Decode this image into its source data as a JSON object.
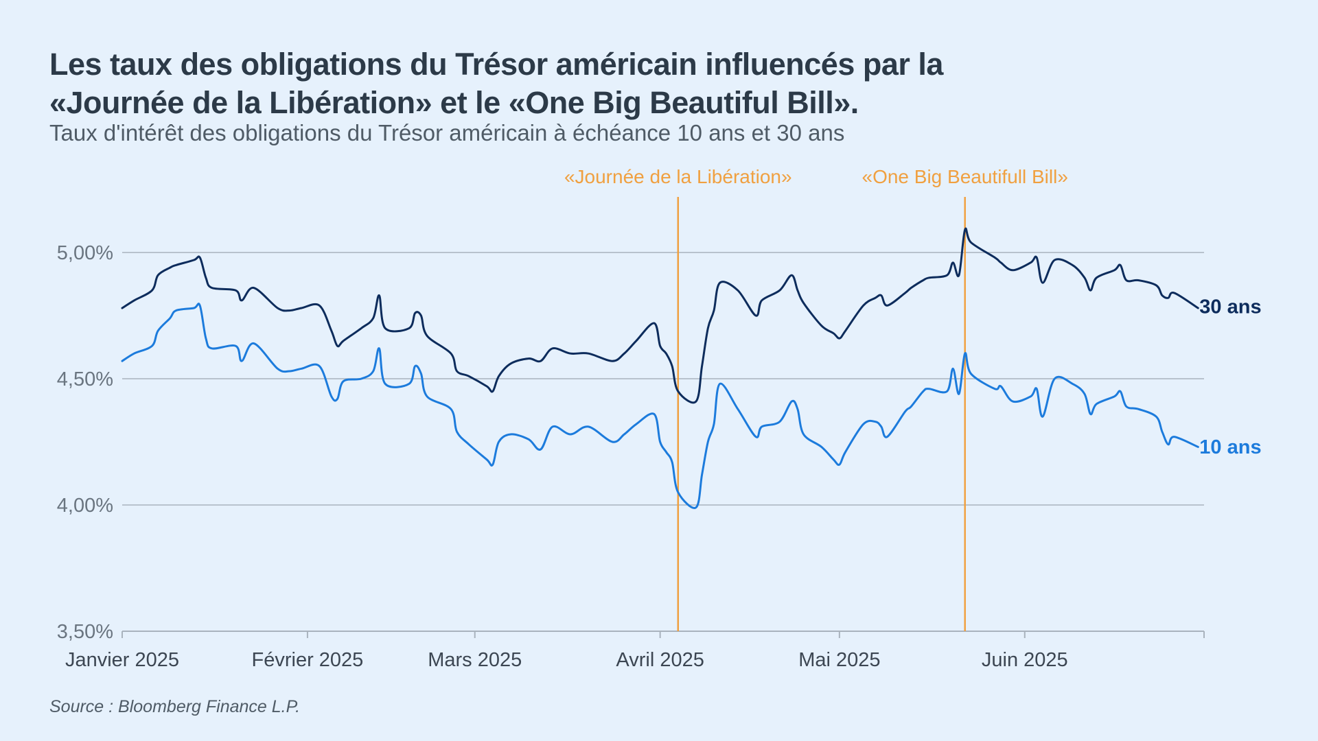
{
  "header": {
    "title_line1": "Les taux des obligations du Trésor américain influencés par la",
    "title_line2": "«Journée de la Libération» et le «One Big Beautiful Bill».",
    "subtitle": "Taux d'intérêt des obligations du Trésor américain à échéance 10 ans et 30 ans"
  },
  "footer": {
    "source": "Source : Bloomberg Finance L.P."
  },
  "colors": {
    "background": "#e6f1fc",
    "series_30": "#0d2c5c",
    "series_10": "#1c7bdc",
    "event": "#f0a040",
    "grid": "#a9b3bd"
  },
  "chart_data": {
    "type": "line",
    "ylim": [
      3.5,
      5.0
    ],
    "yticks": [
      {
        "value": 3.5,
        "label": "3,50%"
      },
      {
        "value": 4.0,
        "label": "4,00%"
      },
      {
        "value": 4.5,
        "label": "4,50%"
      },
      {
        "value": 5.0,
        "label": "5,00%"
      }
    ],
    "xlim": [
      "2025-01-01",
      "2025-07-01"
    ],
    "xticks": [
      {
        "date": "2025-01-01",
        "label": "Janvier 2025"
      },
      {
        "date": "2025-02-01",
        "label": "Février 2025"
      },
      {
        "date": "2025-03-01",
        "label": "Mars 2025"
      },
      {
        "date": "2025-04-01",
        "label": "Avril 2025"
      },
      {
        "date": "2025-05-01",
        "label": "Mai 2025"
      },
      {
        "date": "2025-06-01",
        "label": "Juin 2025"
      }
    ],
    "grid": true,
    "events": [
      {
        "date": "2025-04-04",
        "label": "«Journée de la Libération»"
      },
      {
        "date": "2025-05-22",
        "label": "«One Big Beautifull Bill»"
      }
    ],
    "series": [
      {
        "name": "30 ans",
        "points": [
          [
            "2025-01-01",
            4.78
          ],
          [
            "2025-01-03",
            4.81
          ],
          [
            "2025-01-06",
            4.85
          ],
          [
            "2025-01-07",
            4.91
          ],
          [
            "2025-01-09",
            4.94
          ],
          [
            "2025-01-10",
            4.95
          ],
          [
            "2025-01-13",
            4.97
          ],
          [
            "2025-01-14",
            4.98
          ],
          [
            "2025-01-15",
            4.9
          ],
          [
            "2025-01-16",
            4.86
          ],
          [
            "2025-01-20",
            4.85
          ],
          [
            "2025-01-21",
            4.81
          ],
          [
            "2025-01-23",
            4.86
          ],
          [
            "2025-01-27",
            4.78
          ],
          [
            "2025-01-29",
            4.77
          ],
          [
            "2025-01-31",
            4.78
          ],
          [
            "2025-02-03",
            4.79
          ],
          [
            "2025-02-05",
            4.69
          ],
          [
            "2025-02-06",
            4.63
          ],
          [
            "2025-02-07",
            4.65
          ],
          [
            "2025-02-10",
            4.7
          ],
          [
            "2025-02-12",
            4.74
          ],
          [
            "2025-02-13",
            4.83
          ],
          [
            "2025-02-14",
            4.7
          ],
          [
            "2025-02-18",
            4.7
          ],
          [
            "2025-02-19",
            4.76
          ],
          [
            "2025-02-20",
            4.75
          ],
          [
            "2025-02-21",
            4.67
          ],
          [
            "2025-02-25",
            4.6
          ],
          [
            "2025-02-26",
            4.53
          ],
          [
            "2025-02-28",
            4.51
          ],
          [
            "2025-03-03",
            4.47
          ],
          [
            "2025-03-04",
            4.45
          ],
          [
            "2025-03-05",
            4.51
          ],
          [
            "2025-03-07",
            4.56
          ],
          [
            "2025-03-10",
            4.58
          ],
          [
            "2025-03-12",
            4.57
          ],
          [
            "2025-03-14",
            4.62
          ],
          [
            "2025-03-17",
            4.6
          ],
          [
            "2025-03-20",
            4.6
          ],
          [
            "2025-03-24",
            4.57
          ],
          [
            "2025-03-26",
            4.6
          ],
          [
            "2025-03-28",
            4.65
          ],
          [
            "2025-03-31",
            4.72
          ],
          [
            "2025-04-01",
            4.63
          ],
          [
            "2025-04-02",
            4.6
          ],
          [
            "2025-04-03",
            4.55
          ],
          [
            "2025-04-04",
            4.45
          ],
          [
            "2025-04-07",
            4.41
          ],
          [
            "2025-04-08",
            4.55
          ],
          [
            "2025-04-09",
            4.7
          ],
          [
            "2025-04-10",
            4.77
          ],
          [
            "2025-04-11",
            4.88
          ],
          [
            "2025-04-14",
            4.85
          ],
          [
            "2025-04-17",
            4.75
          ],
          [
            "2025-04-18",
            4.81
          ],
          [
            "2025-04-21",
            4.85
          ],
          [
            "2025-04-23",
            4.91
          ],
          [
            "2025-04-24",
            4.85
          ],
          [
            "2025-04-25",
            4.8
          ],
          [
            "2025-04-28",
            4.71
          ],
          [
            "2025-04-30",
            4.68
          ],
          [
            "2025-05-01",
            4.66
          ],
          [
            "2025-05-02",
            4.69
          ],
          [
            "2025-05-05",
            4.79
          ],
          [
            "2025-05-07",
            4.82
          ],
          [
            "2025-05-08",
            4.83
          ],
          [
            "2025-05-09",
            4.79
          ],
          [
            "2025-05-12",
            4.84
          ],
          [
            "2025-05-13",
            4.86
          ],
          [
            "2025-05-15",
            4.89
          ],
          [
            "2025-05-16",
            4.9
          ],
          [
            "2025-05-19",
            4.91
          ],
          [
            "2025-05-20",
            4.96
          ],
          [
            "2025-05-21",
            4.91
          ],
          [
            "2025-05-22",
            5.09
          ],
          [
            "2025-05-23",
            5.04
          ],
          [
            "2025-05-27",
            4.98
          ],
          [
            "2025-05-28",
            4.96
          ],
          [
            "2025-05-30",
            4.93
          ],
          [
            "2025-06-02",
            4.96
          ],
          [
            "2025-06-03",
            4.98
          ],
          [
            "2025-06-04",
            4.88
          ],
          [
            "2025-06-06",
            4.97
          ],
          [
            "2025-06-09",
            4.95
          ],
          [
            "2025-06-11",
            4.9
          ],
          [
            "2025-06-12",
            4.85
          ],
          [
            "2025-06-13",
            4.9
          ],
          [
            "2025-06-16",
            4.93
          ],
          [
            "2025-06-17",
            4.95
          ],
          [
            "2025-06-18",
            4.89
          ],
          [
            "2025-06-20",
            4.89
          ],
          [
            "2025-06-23",
            4.87
          ],
          [
            "2025-06-24",
            4.83
          ],
          [
            "2025-06-25",
            4.82
          ],
          [
            "2025-06-26",
            4.84
          ],
          [
            "2025-06-30",
            4.78
          ]
        ]
      },
      {
        "name": "10 ans",
        "points": [
          [
            "2025-01-01",
            4.57
          ],
          [
            "2025-01-03",
            4.6
          ],
          [
            "2025-01-06",
            4.63
          ],
          [
            "2025-01-07",
            4.69
          ],
          [
            "2025-01-09",
            4.74
          ],
          [
            "2025-01-10",
            4.77
          ],
          [
            "2025-01-13",
            4.78
          ],
          [
            "2025-01-14",
            4.79
          ],
          [
            "2025-01-15",
            4.66
          ],
          [
            "2025-01-16",
            4.62
          ],
          [
            "2025-01-20",
            4.63
          ],
          [
            "2025-01-21",
            4.57
          ],
          [
            "2025-01-23",
            4.64
          ],
          [
            "2025-01-27",
            4.54
          ],
          [
            "2025-01-29",
            4.53
          ],
          [
            "2025-01-31",
            4.54
          ],
          [
            "2025-02-03",
            4.55
          ],
          [
            "2025-02-05",
            4.43
          ],
          [
            "2025-02-06",
            4.42
          ],
          [
            "2025-02-07",
            4.49
          ],
          [
            "2025-02-10",
            4.5
          ],
          [
            "2025-02-12",
            4.53
          ],
          [
            "2025-02-13",
            4.62
          ],
          [
            "2025-02-14",
            4.48
          ],
          [
            "2025-02-18",
            4.48
          ],
          [
            "2025-02-19",
            4.55
          ],
          [
            "2025-02-20",
            4.52
          ],
          [
            "2025-02-21",
            4.43
          ],
          [
            "2025-02-25",
            4.38
          ],
          [
            "2025-02-26",
            4.29
          ],
          [
            "2025-02-28",
            4.24
          ],
          [
            "2025-03-03",
            4.18
          ],
          [
            "2025-03-04",
            4.16
          ],
          [
            "2025-03-05",
            4.25
          ],
          [
            "2025-03-07",
            4.28
          ],
          [
            "2025-03-10",
            4.26
          ],
          [
            "2025-03-12",
            4.22
          ],
          [
            "2025-03-14",
            4.31
          ],
          [
            "2025-03-17",
            4.28
          ],
          [
            "2025-03-20",
            4.31
          ],
          [
            "2025-03-24",
            4.25
          ],
          [
            "2025-03-26",
            4.28
          ],
          [
            "2025-03-28",
            4.32
          ],
          [
            "2025-03-31",
            4.36
          ],
          [
            "2025-04-01",
            4.25
          ],
          [
            "2025-04-02",
            4.21
          ],
          [
            "2025-04-03",
            4.17
          ],
          [
            "2025-04-04",
            4.05
          ],
          [
            "2025-04-07",
            3.99
          ],
          [
            "2025-04-08",
            4.12
          ],
          [
            "2025-04-09",
            4.25
          ],
          [
            "2025-04-10",
            4.32
          ],
          [
            "2025-04-11",
            4.48
          ],
          [
            "2025-04-14",
            4.38
          ],
          [
            "2025-04-17",
            4.27
          ],
          [
            "2025-04-18",
            4.31
          ],
          [
            "2025-04-21",
            4.33
          ],
          [
            "2025-04-23",
            4.41
          ],
          [
            "2025-04-24",
            4.38
          ],
          [
            "2025-04-25",
            4.28
          ],
          [
            "2025-04-28",
            4.23
          ],
          [
            "2025-04-30",
            4.18
          ],
          [
            "2025-05-01",
            4.16
          ],
          [
            "2025-05-02",
            4.21
          ],
          [
            "2025-05-05",
            4.32
          ],
          [
            "2025-05-07",
            4.33
          ],
          [
            "2025-05-08",
            4.31
          ],
          [
            "2025-05-09",
            4.27
          ],
          [
            "2025-05-12",
            4.37
          ],
          [
            "2025-05-13",
            4.39
          ],
          [
            "2025-05-15",
            4.45
          ],
          [
            "2025-05-16",
            4.46
          ],
          [
            "2025-05-19",
            4.45
          ],
          [
            "2025-05-20",
            4.54
          ],
          [
            "2025-05-21",
            4.44
          ],
          [
            "2025-05-22",
            4.6
          ],
          [
            "2025-05-23",
            4.52
          ],
          [
            "2025-05-27",
            4.46
          ],
          [
            "2025-05-28",
            4.47
          ],
          [
            "2025-05-30",
            4.41
          ],
          [
            "2025-06-02",
            4.43
          ],
          [
            "2025-06-03",
            4.46
          ],
          [
            "2025-06-04",
            4.35
          ],
          [
            "2025-06-06",
            4.5
          ],
          [
            "2025-06-09",
            4.48
          ],
          [
            "2025-06-11",
            4.44
          ],
          [
            "2025-06-12",
            4.36
          ],
          [
            "2025-06-13",
            4.4
          ],
          [
            "2025-06-16",
            4.43
          ],
          [
            "2025-06-17",
            4.45
          ],
          [
            "2025-06-18",
            4.39
          ],
          [
            "2025-06-20",
            4.38
          ],
          [
            "2025-06-23",
            4.35
          ],
          [
            "2025-06-24",
            4.29
          ],
          [
            "2025-06-25",
            4.24
          ],
          [
            "2025-06-26",
            4.27
          ],
          [
            "2025-06-30",
            4.23
          ]
        ]
      }
    ]
  }
}
